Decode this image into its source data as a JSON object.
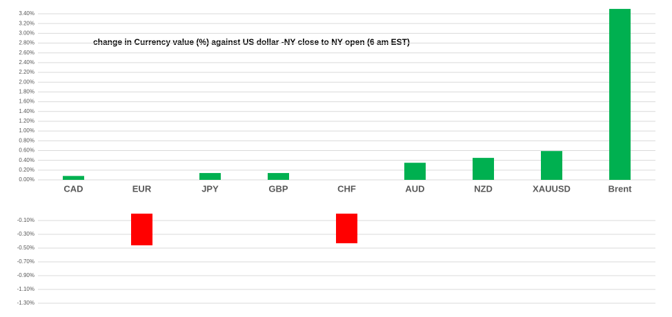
{
  "chart_data": [
    {
      "type": "bar",
      "title": "change in Currency value (%)  against US dollar -NY close to NY open (6 am EST)",
      "categories": [
        "CAD",
        "EUR",
        "JPY",
        "GBP",
        "CHF",
        "AUD",
        "NZD",
        "XAUUSD",
        "Brent"
      ],
      "values": [
        0.08,
        null,
        0.14,
        0.14,
        null,
        0.35,
        0.45,
        0.59,
        3.5
      ],
      "color": "#00b050",
      "ylim": [
        0,
        3.5
      ],
      "yticks": [
        {
          "value": 0,
          "label": "0.00%"
        },
        {
          "value": 0.2,
          "label": "0.20%"
        },
        {
          "value": 0.4,
          "label": "0.40%"
        },
        {
          "value": 0.6,
          "label": "0.60%"
        },
        {
          "value": 0.8,
          "label": "0.80%"
        },
        {
          "value": 1,
          "label": "1.00%"
        },
        {
          "value": 1.2,
          "label": "1.20%"
        },
        {
          "value": 1.4,
          "label": "1.40%"
        },
        {
          "value": 1.6,
          "label": "1.60%"
        },
        {
          "value": 1.8,
          "label": "1.80%"
        },
        {
          "value": 2,
          "label": "2.00%"
        },
        {
          "value": 2.2,
          "label": "2.20%"
        },
        {
          "value": 2.4,
          "label": "2.40%"
        },
        {
          "value": 2.6,
          "label": "2.60%"
        },
        {
          "value": 2.8,
          "label": "2.80%"
        },
        {
          "value": 3,
          "label": "3.00%"
        },
        {
          "value": 3.2,
          "label": "3.20%"
        },
        {
          "value": 3.4,
          "label": "3.40%"
        }
      ],
      "grid": true
    },
    {
      "type": "bar",
      "categories": [
        null,
        null,
        null,
        null,
        null,
        null,
        null,
        null,
        null
      ],
      "values": [
        null,
        -0.46,
        null,
        null,
        -0.43,
        null,
        null,
        null,
        null
      ],
      "color": "#ff0000",
      "ylim": [
        -1.5,
        0
      ],
      "yticks": [
        {
          "value": -0.1,
          "label": "-0.10%"
        },
        {
          "value": -0.3,
          "label": "-0.30%"
        },
        {
          "value": -0.5,
          "label": "-0.50%"
        },
        {
          "value": -0.7,
          "label": "-0.70%"
        },
        {
          "value": -0.9,
          "label": "-0.90%"
        },
        {
          "value": -1.1,
          "label": "-1.10%"
        },
        {
          "value": -1.3,
          "label": "-1.30%"
        }
      ],
      "grid": true
    }
  ]
}
